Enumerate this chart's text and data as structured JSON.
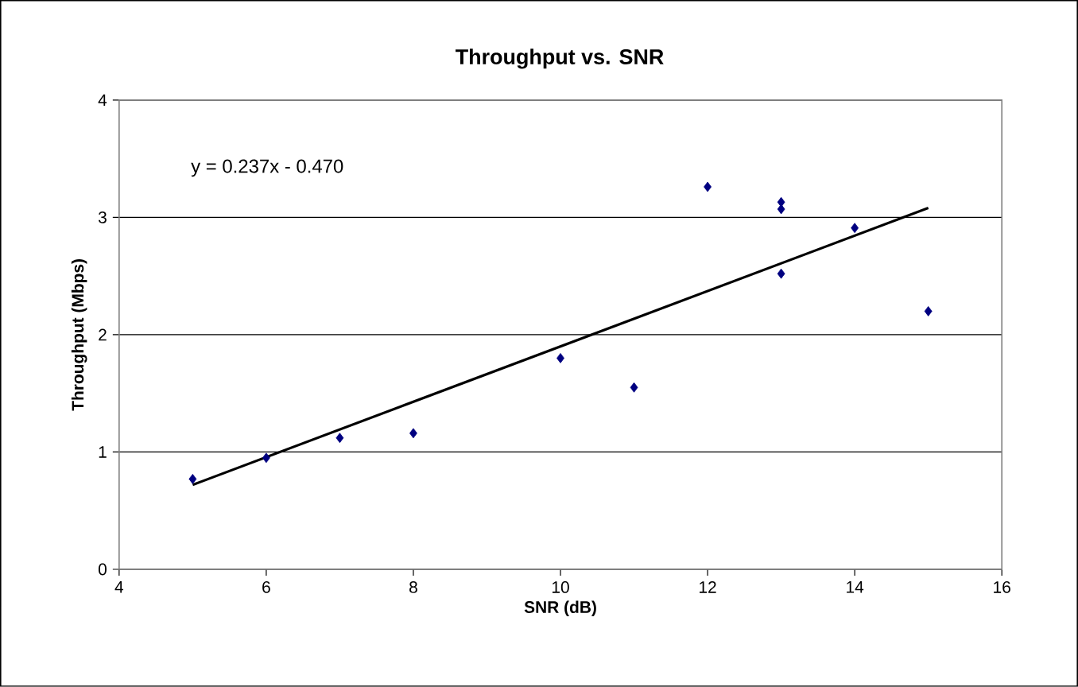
{
  "chart_data": {
    "type": "scatter",
    "title": "Throughput vs. SNR",
    "xlabel": "SNR (dB)",
    "ylabel": "Throughput (Mbps)",
    "annotations": [
      "y = 0.237x - 0.470"
    ],
    "series": [
      {
        "color": "#000080",
        "marker": "diamond",
        "x": [
          5,
          6,
          7,
          8,
          10,
          11,
          12,
          13,
          13,
          13,
          14,
          15
        ],
        "values": [
          0.77,
          0.95,
          1.12,
          1.16,
          1.8,
          1.55,
          3.26,
          3.13,
          3.07,
          2.52,
          2.91,
          2.2
        ]
      },
      {
        "type": "line",
        "color": "#000000",
        "marker": "none",
        "x": [
          5,
          15
        ],
        "values": [
          0.72,
          3.08
        ]
      }
    ],
    "xlim": [
      4,
      16
    ],
    "xticks": [
      4,
      6,
      8,
      10,
      12,
      14,
      16
    ],
    "ylim": [
      0,
      4
    ],
    "yticks": [
      0,
      1,
      2,
      3,
      4
    ],
    "grid": "y"
  }
}
